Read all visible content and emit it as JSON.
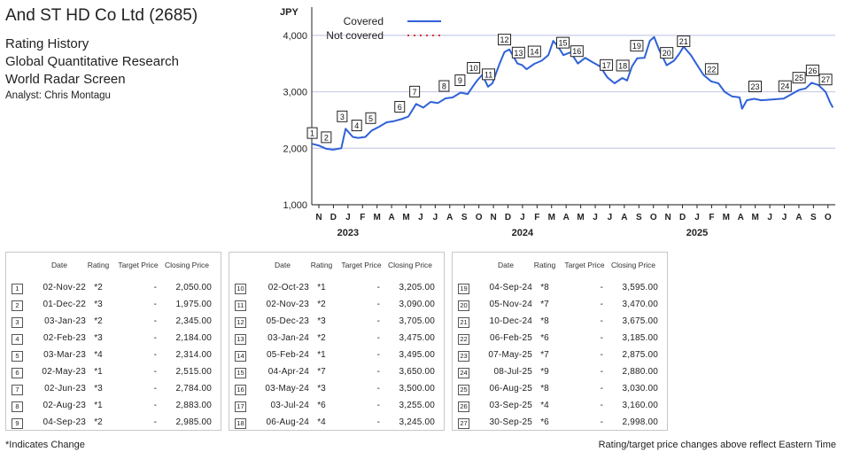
{
  "header": {
    "company": "And ST HD Co Ltd (2685)",
    "subtitles": [
      "Rating History",
      "Global Quantitative Research",
      "World Radar Screen"
    ],
    "analyst": "Analyst: Chris Montagu"
  },
  "table_headers": {
    "date": "Date",
    "rating": "Rating",
    "target": "Target Price",
    "closing": "Closing Price"
  },
  "ratings": [
    {
      "n": "1",
      "date": "02-Nov-22",
      "rating": "*2",
      "target": "-",
      "close": "2,050.00"
    },
    {
      "n": "2",
      "date": "01-Dec-22",
      "rating": "*3",
      "target": "-",
      "close": "1,975.00"
    },
    {
      "n": "3",
      "date": "03-Jan-23",
      "rating": "*2",
      "target": "-",
      "close": "2,345.00"
    },
    {
      "n": "4",
      "date": "02-Feb-23",
      "rating": "*3",
      "target": "-",
      "close": "2,184.00"
    },
    {
      "n": "5",
      "date": "03-Mar-23",
      "rating": "*4",
      "target": "-",
      "close": "2,314.00"
    },
    {
      "n": "6",
      "date": "02-May-23",
      "rating": "*1",
      "target": "-",
      "close": "2,515.00"
    },
    {
      "n": "7",
      "date": "02-Jun-23",
      "rating": "*3",
      "target": "-",
      "close": "2,784.00"
    },
    {
      "n": "8",
      "date": "02-Aug-23",
      "rating": "*1",
      "target": "-",
      "close": "2,883.00"
    },
    {
      "n": "9",
      "date": "04-Sep-23",
      "rating": "*2",
      "target": "-",
      "close": "2,985.00"
    },
    {
      "n": "10",
      "date": "02-Oct-23",
      "rating": "*1",
      "target": "-",
      "close": "3,205.00"
    },
    {
      "n": "11",
      "date": "02-Nov-23",
      "rating": "*2",
      "target": "-",
      "close": "3,090.00"
    },
    {
      "n": "12",
      "date": "05-Dec-23",
      "rating": "*3",
      "target": "-",
      "close": "3,705.00"
    },
    {
      "n": "13",
      "date": "03-Jan-24",
      "rating": "*2",
      "target": "-",
      "close": "3,475.00"
    },
    {
      "n": "14",
      "date": "05-Feb-24",
      "rating": "*1",
      "target": "-",
      "close": "3,495.00"
    },
    {
      "n": "15",
      "date": "04-Apr-24",
      "rating": "*7",
      "target": "-",
      "close": "3,650.00"
    },
    {
      "n": "16",
      "date": "03-May-24",
      "rating": "*3",
      "target": "-",
      "close": "3,500.00"
    },
    {
      "n": "17",
      "date": "03-Jul-24",
      "rating": "*6",
      "target": "-",
      "close": "3,255.00"
    },
    {
      "n": "18",
      "date": "06-Aug-24",
      "rating": "*4",
      "target": "-",
      "close": "3,245.00"
    },
    {
      "n": "19",
      "date": "04-Sep-24",
      "rating": "*8",
      "target": "-",
      "close": "3,595.00"
    },
    {
      "n": "20",
      "date": "05-Nov-24",
      "rating": "*7",
      "target": "-",
      "close": "3,470.00"
    },
    {
      "n": "21",
      "date": "10-Dec-24",
      "rating": "*8",
      "target": "-",
      "close": "3,675.00"
    },
    {
      "n": "22",
      "date": "06-Feb-25",
      "rating": "*6",
      "target": "-",
      "close": "3,185.00"
    },
    {
      "n": "23",
      "date": "07-May-25",
      "rating": "*7",
      "target": "-",
      "close": "2,875.00"
    },
    {
      "n": "24",
      "date": "08-Jul-25",
      "rating": "*9",
      "target": "-",
      "close": "2,880.00"
    },
    {
      "n": "25",
      "date": "06-Aug-25",
      "rating": "*8",
      "target": "-",
      "close": "3,030.00"
    },
    {
      "n": "26",
      "date": "03-Sep-25",
      "rating": "*4",
      "target": "-",
      "close": "3,160.00"
    },
    {
      "n": "27",
      "date": "30-Sep-25",
      "rating": "*6",
      "target": "-",
      "close": "2,998.00"
    }
  ],
  "footnotes": {
    "left": "*Indicates Change",
    "right": "Rating/target price changes above reflect Eastern Time"
  },
  "chart_data": {
    "type": "line",
    "ylabel": "JPY",
    "ylim": [
      1000,
      4500
    ],
    "yticks": [
      1000,
      2000,
      3000,
      4000
    ],
    "ytick_labels": [
      "1,000",
      "2,000",
      "3,000",
      "4,000"
    ],
    "grid": true,
    "legend_position": "top-center",
    "x_month_labels": [
      "N",
      "D",
      "J",
      "F",
      "M",
      "A",
      "M",
      "J",
      "J",
      "A",
      "S",
      "O",
      "N",
      "D",
      "J",
      "F",
      "M",
      "A",
      "M",
      "J",
      "J",
      "A",
      "S",
      "O",
      "N",
      "D",
      "J",
      "F",
      "M",
      "A",
      "M",
      "J",
      "J",
      "A",
      "S",
      "O"
    ],
    "x_year_labels": [
      {
        "label": "2023",
        "month_index": 2
      },
      {
        "label": "2024",
        "month_index": 14
      },
      {
        "label": "2025",
        "month_index": 26
      }
    ],
    "series": [
      {
        "name": "Covered",
        "color": "#2f62d8",
        "style": "solid",
        "x": [
          "2022-11-01",
          "2022-11-15",
          "2022-12-01",
          "2022-12-15",
          "2023-01-01",
          "2023-01-10",
          "2023-01-25",
          "2023-02-05",
          "2023-02-20",
          "2023-03-05",
          "2023-03-20",
          "2023-04-05",
          "2023-04-20",
          "2023-05-05",
          "2023-05-20",
          "2023-06-05",
          "2023-06-20",
          "2023-07-05",
          "2023-07-20",
          "2023-08-05",
          "2023-08-20",
          "2023-09-05",
          "2023-09-20",
          "2023-10-01",
          "2023-10-10",
          "2023-10-20",
          "2023-11-01",
          "2023-11-10",
          "2023-11-25",
          "2023-12-05",
          "2023-12-15",
          "2024-01-01",
          "2024-01-10",
          "2024-01-20",
          "2024-02-05",
          "2024-02-20",
          "2024-03-05",
          "2024-03-15",
          "2024-03-25",
          "2024-04-05",
          "2024-04-20",
          "2024-05-05",
          "2024-05-20",
          "2024-06-05",
          "2024-06-20",
          "2024-07-05",
          "2024-07-20",
          "2024-08-05",
          "2024-08-15",
          "2024-08-25",
          "2024-09-05",
          "2024-09-20",
          "2024-10-01",
          "2024-10-10",
          "2024-10-20",
          "2024-11-05",
          "2024-11-20",
          "2024-12-01",
          "2024-12-10",
          "2024-12-25",
          "2025-01-05",
          "2025-01-20",
          "2025-02-05",
          "2025-02-20",
          "2025-03-05",
          "2025-03-20",
          "2025-04-05",
          "2025-04-10",
          "2025-04-20",
          "2025-05-05",
          "2025-05-20",
          "2025-06-05",
          "2025-06-20",
          "2025-07-05",
          "2025-07-20",
          "2025-08-05",
          "2025-08-20",
          "2025-09-01",
          "2025-09-15",
          "2025-09-30",
          "2025-10-10",
          "2025-10-15"
        ],
        "values": [
          2080,
          2050,
          1990,
          1975,
          2000,
          2345,
          2200,
          2184,
          2200,
          2314,
          2380,
          2460,
          2480,
          2515,
          2560,
          2784,
          2720,
          2820,
          2800,
          2883,
          2900,
          2985,
          2960,
          3100,
          3205,
          3300,
          3090,
          3150,
          3500,
          3705,
          3750,
          3500,
          3475,
          3400,
          3495,
          3550,
          3650,
          3900,
          3800,
          3650,
          3700,
          3500,
          3600,
          3520,
          3450,
          3255,
          3150,
          3245,
          3200,
          3450,
          3595,
          3600,
          3900,
          3970,
          3750,
          3470,
          3550,
          3675,
          3800,
          3650,
          3500,
          3300,
          3185,
          3150,
          3000,
          2920,
          2900,
          2700,
          2850,
          2875,
          2850,
          2860,
          2870,
          2880,
          2950,
          3030,
          3060,
          3160,
          3120,
          2998,
          2800,
          2720
        ]
      },
      {
        "name": "Not covered",
        "color": "#e03030",
        "style": "dotted",
        "x": [],
        "values": []
      }
    ],
    "rating_markers": [
      {
        "label": "1",
        "x": "2022-11-02",
        "y": 2050
      },
      {
        "label": "2",
        "x": "2022-12-01",
        "y": 1975
      },
      {
        "label": "3",
        "x": "2023-01-03",
        "y": 2345
      },
      {
        "label": "4",
        "x": "2023-02-02",
        "y": 2184
      },
      {
        "label": "5",
        "x": "2023-03-03",
        "y": 2314
      },
      {
        "label": "6",
        "x": "2023-05-02",
        "y": 2515
      },
      {
        "label": "7",
        "x": "2023-06-02",
        "y": 2784
      },
      {
        "label": "8",
        "x": "2023-08-02",
        "y": 2883
      },
      {
        "label": "9",
        "x": "2023-09-04",
        "y": 2985
      },
      {
        "label": "10",
        "x": "2023-10-02",
        "y": 3205
      },
      {
        "label": "11",
        "x": "2023-11-02",
        "y": 3090
      },
      {
        "label": "12",
        "x": "2023-12-05",
        "y": 3705
      },
      {
        "label": "13",
        "x": "2024-01-03",
        "y": 3475
      },
      {
        "label": "14",
        "x": "2024-02-05",
        "y": 3495
      },
      {
        "label": "15",
        "x": "2024-04-04",
        "y": 3650
      },
      {
        "label": "16",
        "x": "2024-05-03",
        "y": 3500
      },
      {
        "label": "17",
        "x": "2024-07-03",
        "y": 3255
      },
      {
        "label": "18",
        "x": "2024-08-06",
        "y": 3245
      },
      {
        "label": "19",
        "x": "2024-09-04",
        "y": 3595
      },
      {
        "label": "20",
        "x": "2024-11-05",
        "y": 3470
      },
      {
        "label": "21",
        "x": "2024-12-10",
        "y": 3675
      },
      {
        "label": "22",
        "x": "2025-02-06",
        "y": 3185
      },
      {
        "label": "23",
        "x": "2025-05-07",
        "y": 2875
      },
      {
        "label": "24",
        "x": "2025-07-08",
        "y": 2880
      },
      {
        "label": "25",
        "x": "2025-08-06",
        "y": 3030
      },
      {
        "label": "26",
        "x": "2025-09-03",
        "y": 3160
      },
      {
        "label": "27",
        "x": "2025-09-30",
        "y": 2998
      }
    ]
  }
}
